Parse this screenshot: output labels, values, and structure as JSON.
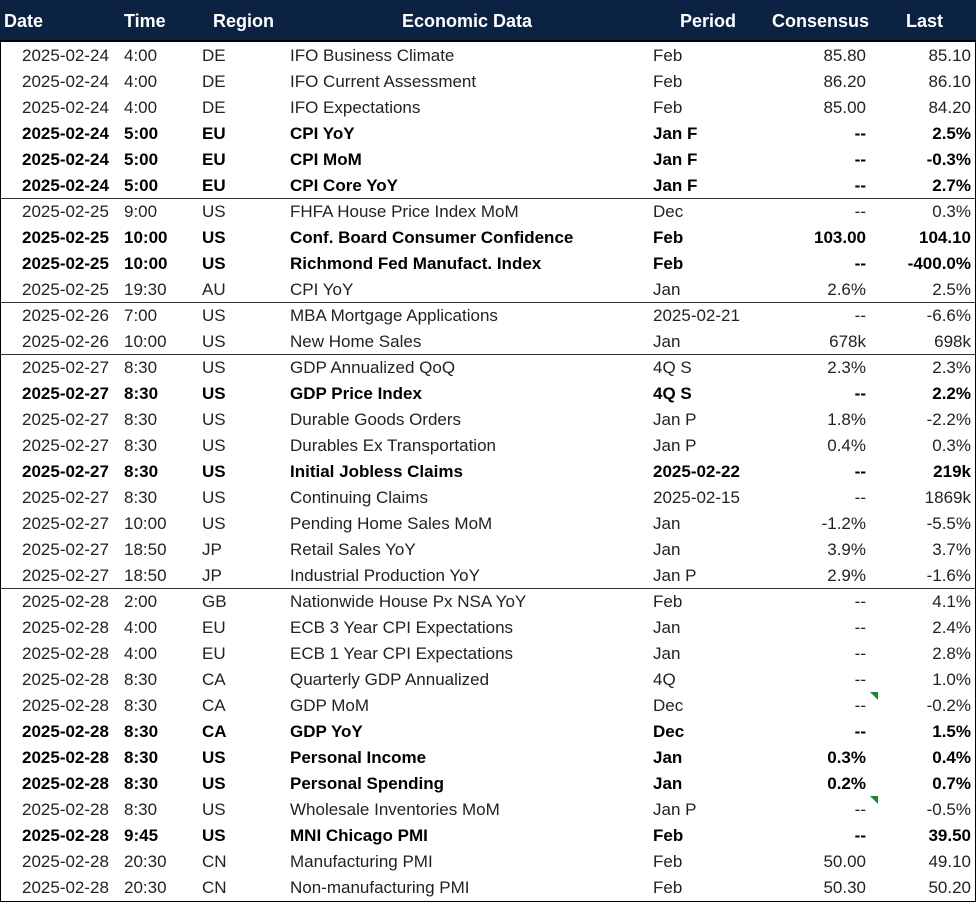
{
  "table": {
    "headers": [
      "Date",
      "Time",
      "Region",
      "Economic Data",
      "Period",
      "Consensus",
      "Last"
    ],
    "rows": [
      {
        "cells": [
          "2025-02-24",
          "4:00",
          "DE",
          "IFO Business Climate",
          "Feb",
          "85.80",
          "85.10"
        ]
      },
      {
        "cells": [
          "2025-02-24",
          "4:00",
          "DE",
          "IFO Current Assessment",
          "Feb",
          "86.20",
          "86.10"
        ]
      },
      {
        "cells": [
          "2025-02-24",
          "4:00",
          "DE",
          "IFO Expectations",
          "Feb",
          "85.00",
          "84.20"
        ]
      },
      {
        "cells": [
          "2025-02-24",
          "5:00",
          "EU",
          "CPI YoY",
          "Jan F",
          "--",
          "2.5%"
        ],
        "bold": true
      },
      {
        "cells": [
          "2025-02-24",
          "5:00",
          "EU",
          "CPI MoM",
          "Jan F",
          "--",
          "-0.3%"
        ],
        "bold": true
      },
      {
        "cells": [
          "2025-02-24",
          "5:00",
          "EU",
          "CPI Core YoY",
          "Jan F",
          "--",
          "2.7%"
        ],
        "bold": true
      },
      {
        "cells": [
          "2025-02-25",
          "9:00",
          "US",
          "FHFA House Price Index MoM",
          "Dec",
          "--",
          "0.3%"
        ]
      },
      {
        "cells": [
          "2025-02-25",
          "10:00",
          "US",
          "Conf. Board Consumer Confidence",
          "Feb",
          "103.00",
          "104.10"
        ],
        "bold": true
      },
      {
        "cells": [
          "2025-02-25",
          "10:00",
          "US",
          "Richmond Fed Manufact. Index",
          "Feb",
          "--",
          "-400.0%"
        ],
        "bold": true
      },
      {
        "cells": [
          "2025-02-25",
          "19:30",
          "AU",
          "CPI YoY",
          "Jan",
          "2.6%",
          "2.5%"
        ]
      },
      {
        "cells": [
          "2025-02-26",
          "7:00",
          "US",
          "MBA Mortgage Applications",
          "2025-02-21",
          "--",
          "-6.6%"
        ]
      },
      {
        "cells": [
          "2025-02-26",
          "10:00",
          "US",
          "New Home Sales",
          "Jan",
          "678k",
          "698k"
        ]
      },
      {
        "cells": [
          "2025-02-27",
          "8:30",
          "US",
          "GDP Annualized QoQ",
          "4Q S",
          "2.3%",
          "2.3%"
        ]
      },
      {
        "cells": [
          "2025-02-27",
          "8:30",
          "US",
          "GDP Price Index",
          "4Q S",
          "--",
          "2.2%"
        ],
        "bold": true
      },
      {
        "cells": [
          "2025-02-27",
          "8:30",
          "US",
          "Durable Goods Orders",
          "Jan P",
          "1.8%",
          "-2.2%"
        ]
      },
      {
        "cells": [
          "2025-02-27",
          "8:30",
          "US",
          "Durables Ex Transportation",
          "Jan P",
          "0.4%",
          "0.3%"
        ]
      },
      {
        "cells": [
          "2025-02-27",
          "8:30",
          "US",
          "Initial Jobless Claims",
          "2025-02-22",
          "--",
          "219k"
        ],
        "bold": true
      },
      {
        "cells": [
          "2025-02-27",
          "8:30",
          "US",
          "Continuing Claims",
          "2025-02-15",
          "--",
          "1869k"
        ]
      },
      {
        "cells": [
          "2025-02-27",
          "10:00",
          "US",
          "Pending Home Sales MoM",
          "Jan",
          "-1.2%",
          "-5.5%"
        ]
      },
      {
        "cells": [
          "2025-02-27",
          "18:50",
          "JP",
          "Retail Sales YoY",
          "Jan",
          "3.9%",
          "3.7%"
        ]
      },
      {
        "cells": [
          "2025-02-27",
          "18:50",
          "JP",
          "Industrial Production YoY",
          "Jan P",
          "2.9%",
          "-1.6%"
        ]
      },
      {
        "cells": [
          "2025-02-28",
          "2:00",
          "GB",
          "Nationwide House Px NSA YoY",
          "Feb",
          "--",
          "4.1%"
        ]
      },
      {
        "cells": [
          "2025-02-28",
          "4:00",
          "EU",
          "ECB 3 Year CPI Expectations",
          "Jan",
          "--",
          "2.4%"
        ]
      },
      {
        "cells": [
          "2025-02-28",
          "4:00",
          "EU",
          "ECB 1 Year CPI Expectations",
          "Jan",
          "--",
          "2.8%"
        ]
      },
      {
        "cells": [
          "2025-02-28",
          "8:30",
          "CA",
          "Quarterly GDP Annualized",
          "4Q",
          "--",
          "1.0%"
        ]
      },
      {
        "cells": [
          "2025-02-28",
          "8:30",
          "CA",
          "GDP MoM",
          "Dec",
          "--",
          "-0.2%"
        ],
        "comment_marker": true
      },
      {
        "cells": [
          "2025-02-28",
          "8:30",
          "CA",
          "GDP YoY",
          "Dec",
          "--",
          "1.5%"
        ],
        "bold": true
      },
      {
        "cells": [
          "2025-02-28",
          "8:30",
          "US",
          "Personal Income",
          "Jan",
          "0.3%",
          "0.4%"
        ],
        "bold": true
      },
      {
        "cells": [
          "2025-02-28",
          "8:30",
          "US",
          "Personal Spending",
          "Jan",
          "0.2%",
          "0.7%"
        ],
        "bold": true
      },
      {
        "cells": [
          "2025-02-28",
          "8:30",
          "US",
          "Wholesale Inventories MoM",
          "Jan P",
          "--",
          "-0.5%"
        ],
        "comment_marker": true
      },
      {
        "cells": [
          "2025-02-28",
          "9:45",
          "US",
          "MNI Chicago PMI",
          "Feb",
          "--",
          "39.50"
        ],
        "bold": true
      },
      {
        "cells": [
          "2025-02-28",
          "20:30",
          "CN",
          "Manufacturing PMI",
          "Feb",
          "50.00",
          "49.10"
        ]
      },
      {
        "cells": [
          "2025-02-28",
          "20:30",
          "CN",
          "Non-manufacturing PMI",
          "Feb",
          "50.30",
          "50.20"
        ]
      }
    ]
  }
}
